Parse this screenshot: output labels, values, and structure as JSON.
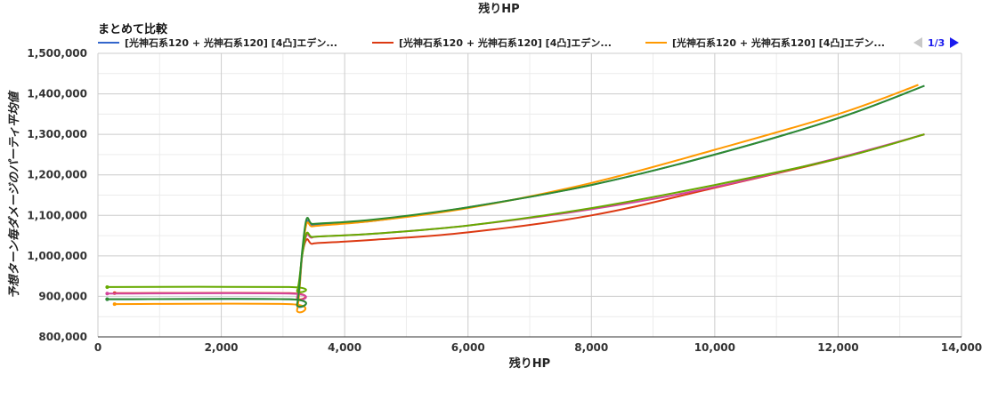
{
  "top_title": "残りHP",
  "chart_title": "まとめて比較",
  "legend": {
    "items": [
      {
        "label": "[光神石系120 + 光神石系120] [4凸]エデン...",
        "color": "#3366cc"
      },
      {
        "label": "[光神石系120 + 光神石系120] [4凸]エデン...",
        "color": "#dc3912"
      },
      {
        "label": "[光神石系120 + 光神石系120] [4凸]エデン...",
        "color": "#ff9900"
      }
    ],
    "page": "1/3"
  },
  "chart_data": {
    "type": "line",
    "title": "まとめて比較",
    "xlabel": "残りHP",
    "ylabel": "予想ターン毎ダメージのパーティ平均値",
    "xlim": [
      0,
      14000
    ],
    "ylim": [
      800000,
      1500000
    ],
    "x_ticks": [
      "0",
      "2,000",
      "4,000",
      "6,000",
      "8,000",
      "10,000",
      "12,000",
      "14,000"
    ],
    "y_ticks": [
      "800,000",
      "900,000",
      "1,000,000",
      "1,100,000",
      "1,200,000",
      "1,300,000",
      "1,400,000",
      "1,500,000"
    ],
    "grid": true,
    "series": [
      {
        "name": "[光神石系120 + 光神石系120] [4凸]エデン...",
        "color": "#3366cc",
        "points": [
          [
            150,
            893000
          ],
          [
            3100,
            893000
          ],
          [
            3230,
            880000
          ],
          [
            3310,
            1000000
          ],
          [
            3380,
            1082000
          ],
          [
            3460,
            1077000
          ],
          [
            3600,
            1078000
          ],
          [
            4500,
            1087000
          ],
          [
            6000,
            1120000
          ],
          [
            8000,
            1175000
          ],
          [
            10000,
            1250000
          ],
          [
            12000,
            1340000
          ],
          [
            13400,
            1420000
          ]
        ]
      },
      {
        "name": "[光神石系120 + 光神石系120] [4凸]エデン...",
        "color": "#dc3912",
        "points": [
          [
            270,
            908000
          ],
          [
            3100,
            908000
          ],
          [
            3230,
            898000
          ],
          [
            3310,
            1000000
          ],
          [
            3380,
            1040000
          ],
          [
            3460,
            1030000
          ],
          [
            3600,
            1032000
          ],
          [
            4500,
            1040000
          ],
          [
            6000,
            1058000
          ],
          [
            8000,
            1100000
          ],
          [
            10000,
            1168000
          ],
          [
            12000,
            1240000
          ],
          [
            13400,
            1300000
          ]
        ]
      },
      {
        "name": "[光神石系120 + 光神石系120] [4凸]エデン...",
        "color": "#ff9900",
        "points": [
          [
            270,
            881000
          ],
          [
            3100,
            881000
          ],
          [
            3230,
            868000
          ],
          [
            3310,
            1000000
          ],
          [
            3380,
            1078000
          ],
          [
            3460,
            1073000
          ],
          [
            3600,
            1075000
          ],
          [
            4500,
            1087000
          ],
          [
            6000,
            1118000
          ],
          [
            8000,
            1180000
          ],
          [
            10000,
            1262000
          ],
          [
            12000,
            1350000
          ],
          [
            13300,
            1422000
          ]
        ]
      },
      {
        "name": "",
        "color": "#d4449c",
        "points": [
          [
            150,
            907000
          ],
          [
            3100,
            907000
          ],
          [
            3230,
            897000
          ],
          [
            3310,
            1000000
          ],
          [
            3380,
            1050000
          ],
          [
            3460,
            1045000
          ],
          [
            3600,
            1048000
          ],
          [
            4500,
            1055000
          ],
          [
            6000,
            1075000
          ],
          [
            8000,
            1115000
          ],
          [
            10000,
            1170000
          ],
          [
            12000,
            1242000
          ],
          [
            13400,
            1300000
          ]
        ]
      },
      {
        "name": "",
        "color": "#66aa00",
        "points": [
          [
            150,
            923000
          ],
          [
            3100,
            923000
          ],
          [
            3230,
            915000
          ],
          [
            3310,
            1000000
          ],
          [
            3380,
            1055000
          ],
          [
            3460,
            1047000
          ],
          [
            3600,
            1048000
          ],
          [
            4500,
            1055000
          ],
          [
            6000,
            1075000
          ],
          [
            8000,
            1118000
          ],
          [
            10000,
            1175000
          ],
          [
            12000,
            1240000
          ],
          [
            13400,
            1300000
          ]
        ]
      },
      {
        "name": "",
        "color": "#2e8b2e",
        "points": [
          [
            150,
            893000
          ],
          [
            3100,
            893000
          ],
          [
            3230,
            882000
          ],
          [
            3310,
            1010000
          ],
          [
            3380,
            1090000
          ],
          [
            3460,
            1080000
          ],
          [
            3600,
            1080000
          ],
          [
            4500,
            1090000
          ],
          [
            6000,
            1120000
          ],
          [
            8000,
            1175000
          ],
          [
            10000,
            1250000
          ],
          [
            12000,
            1340000
          ],
          [
            13400,
            1420000
          ]
        ]
      }
    ]
  }
}
